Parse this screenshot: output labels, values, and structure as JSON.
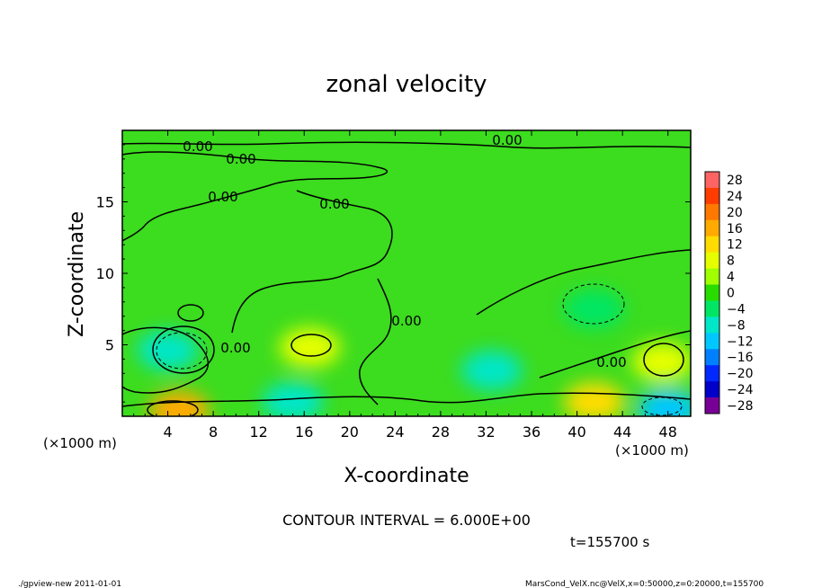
{
  "chart_data": {
    "type": "heatmap",
    "title": "zonal velocity",
    "xlabel": "X-coordinate",
    "ylabel": "Z-coordinate",
    "x_unit_left": "(×1000 m)",
    "x_unit_right": "(×1000 m)",
    "xlim": [
      0,
      50
    ],
    "ylim": [
      0,
      20
    ],
    "x_ticks": [
      4,
      8,
      12,
      16,
      20,
      24,
      28,
      32,
      36,
      40,
      44,
      48
    ],
    "y_ticks": [
      5,
      10,
      15
    ],
    "grid": false,
    "contour_interval_text": "CONTOUR INTERVAL = 6.000E+00",
    "contour_label": "0.00",
    "time_text": "t=155700 s",
    "colorbar": {
      "levels": [
        28,
        24,
        20,
        16,
        12,
        8,
        4,
        0,
        -4,
        -8,
        -12,
        -16,
        -20,
        -24,
        -28
      ],
      "colors": [
        "#ff6464",
        "#ff3c00",
        "#ff7800",
        "#ffaa00",
        "#ffdc00",
        "#e6ff00",
        "#a0ff00",
        "#28dc00",
        "#00e664",
        "#00e6c8",
        "#00c8ff",
        "#0080ff",
        "#0028ff",
        "#0000c8",
        "#780096"
      ]
    },
    "features": [
      {
        "x": 5,
        "z": 0.4,
        "value": 16
      },
      {
        "x": 4,
        "z": 4.6,
        "value": -8
      },
      {
        "x": 16.5,
        "z": 4.8,
        "value": 8
      },
      {
        "x": 32.5,
        "z": 3.2,
        "value": -8
      },
      {
        "x": 41.5,
        "z": 1.0,
        "value": 12
      },
      {
        "x": 48,
        "z": 0.5,
        "value": -12
      },
      {
        "x": 41.5,
        "z": 7.5,
        "value": -6
      },
      {
        "x": 47.5,
        "z": 3.8,
        "value": 8
      },
      {
        "x": 15,
        "z": 1.0,
        "value": -8
      }
    ]
  },
  "footer": {
    "left": "./gpview-new   2011-01-01",
    "right": "MarsCond_VelX.nc@VelX,x=0:50000,z=0:20000,t=155700"
  }
}
